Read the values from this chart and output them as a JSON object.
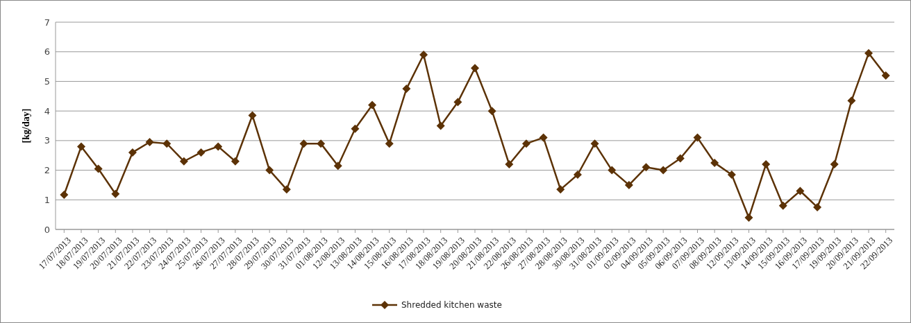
{
  "chart_data": {
    "type": "line",
    "ylabel": "[kg/day]",
    "categories": [
      "17/07/2013",
      "18/07/2013",
      "19/07/2013",
      "20/07/2013",
      "21/07/2013",
      "22/07/2013",
      "23/07/2013",
      "24/07/2013",
      "25/07/2013",
      "26/07/2013",
      "27/07/2013",
      "28/07/2013",
      "29/07/2013",
      "30/07/2013",
      "31/07/2013",
      "01/08/2013",
      "12/08/2013",
      "13/08/2013",
      "14/08/2013",
      "15/08/2013",
      "16/08/2013",
      "17/08/2013",
      "18/08/2013",
      "19/08/2013",
      "20/08/2013",
      "21/08/2013",
      "22/08/2013",
      "26/08/2013",
      "27/08/2013",
      "28/08/2013",
      "30/08/2013",
      "31/08/2013",
      "01/09/2013",
      "02/09/2013",
      "04/09/2013",
      "05/09/2013",
      "06/09/2013",
      "07/09/2013",
      "08/09/2013",
      "12/09/2013",
      "13/09/2013",
      "14/09/2013",
      "15/09/2013",
      "16/09/2013",
      "17/09/2013",
      "19/09/2013",
      "20/09/2013",
      "21/09/2013",
      "22/09/2013"
    ],
    "series": [
      {
        "name": "Shredded kitchen waste",
        "color": "#5c3206",
        "values": [
          1.17,
          2.8,
          2.05,
          1.2,
          2.6,
          2.95,
          2.9,
          2.3,
          2.6,
          2.8,
          2.3,
          3.85,
          2.0,
          1.35,
          2.9,
          2.9,
          2.15,
          3.4,
          4.2,
          2.9,
          4.75,
          5.9,
          3.5,
          4.3,
          5.45,
          4.0,
          2.2,
          2.9,
          3.1,
          1.35,
          1.85,
          2.9,
          2.0,
          1.5,
          2.1,
          2.0,
          2.4,
          3.1,
          2.25,
          1.85,
          0.4,
          2.2,
          0.8,
          1.3,
          0.75,
          2.2,
          4.35,
          5.95,
          5.2
        ]
      }
    ],
    "ylim": [
      0,
      7
    ],
    "yticks": [
      0,
      1,
      2,
      3,
      4,
      5,
      6,
      7
    ],
    "grid": "y",
    "legend": "bottom",
    "marker": "diamond",
    "line_style": "solid"
  }
}
